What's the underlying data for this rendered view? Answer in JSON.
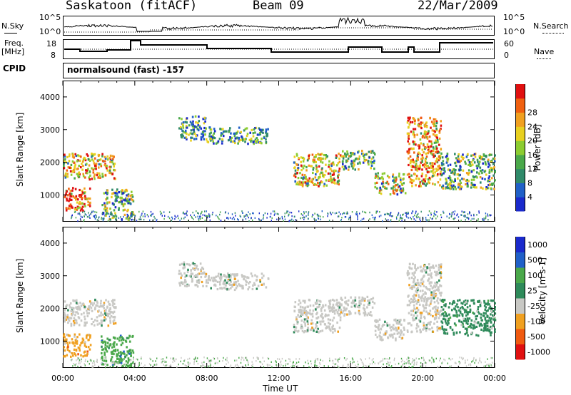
{
  "header": {
    "station": "Saskatoon (fitACF)",
    "beam": "Beam 09",
    "date": "22/Mar/2009"
  },
  "strips": {
    "nsky_label": "N.Sky",
    "nsky_top": "10^5",
    "nsky_bottom": "10^0",
    "nsearch_label": "N.Search",
    "nsearch_top": "10^5",
    "nsearch_bottom": "10^0",
    "freq_label": "Freq.",
    "freq_unit": "[MHz]",
    "freq_top": "18",
    "freq_bottom": "8",
    "nave_label": "Nave",
    "nave_top": "60",
    "nave_bottom": "0",
    "cpid_label": "CPID",
    "cpid_text": "normalsound (fast) -157"
  },
  "colors": {
    "power": [
      "#1a2acc",
      "#2060c8",
      "#2f8a6a",
      "#4aa84a",
      "#8ccc30",
      "#e8d020",
      "#f0a020",
      "#f06010",
      "#e01010"
    ],
    "velocity": [
      "#e01010",
      "#f05a10",
      "#f0a020",
      "#c8c8c4",
      "#2e8a5a",
      "#4aa84a",
      "#2060c8",
      "#1a2acc"
    ],
    "grey": "#c9c8c2"
  },
  "chart_data": [
    {
      "type": "heatmap",
      "panel": "power",
      "ylabel": "Slant Range [km]",
      "xlabel": "",
      "ylim": [
        180,
        4500
      ],
      "xlim": [
        0,
        24
      ],
      "yticks": [
        "1000",
        "2000",
        "3000",
        "4000"
      ],
      "xticks": [
        "00:00",
        "04:00",
        "08:00",
        "12:00",
        "16:00",
        "20:00",
        "00:00"
      ],
      "colorbar_label": "Power [dB]",
      "colorbar_ticks": [
        "4",
        "8",
        "12",
        "16",
        "20",
        "24",
        "28"
      ],
      "echo_regions": [
        {
          "t0": 0.0,
          "t1": 1.5,
          "r0": 550,
          "r1": 1250,
          "level": 8
        },
        {
          "t0": 0.0,
          "t1": 2.9,
          "r0": 1500,
          "r1": 2300,
          "level": 6
        },
        {
          "t0": 2.1,
          "t1": 3.9,
          "r0": 250,
          "r1": 1200,
          "level": 4
        },
        {
          "t0": 6.4,
          "t1": 7.9,
          "r0": 2700,
          "r1": 3450,
          "level": 3
        },
        {
          "t0": 7.9,
          "t1": 11.4,
          "r0": 2600,
          "r1": 3100,
          "level": 3
        },
        {
          "t0": 12.8,
          "t1": 15.4,
          "r0": 1300,
          "r1": 2300,
          "level": 6
        },
        {
          "t0": 15.4,
          "t1": 17.3,
          "r0": 1800,
          "r1": 2400,
          "level": 4
        },
        {
          "t0": 17.3,
          "t1": 19.0,
          "r0": 1050,
          "r1": 1700,
          "level": 5
        },
        {
          "t0": 19.1,
          "t1": 21.0,
          "r0": 1300,
          "r1": 3400,
          "level": 7
        },
        {
          "t0": 21.0,
          "t1": 24.0,
          "r0": 1200,
          "r1": 2300,
          "level": 4
        }
      ]
    },
    {
      "type": "heatmap",
      "panel": "velocity",
      "ylabel": "Slant Range [km]",
      "xlabel": "Time UT",
      "ylim": [
        180,
        4500
      ],
      "xlim": [
        0,
        24
      ],
      "yticks": [
        "1000",
        "2000",
        "3000",
        "4000"
      ],
      "xticks": [
        "00:00",
        "04:00",
        "08:00",
        "12:00",
        "16:00",
        "20:00",
        "00:00"
      ],
      "colorbar_label": "Velocity [m s-1]",
      "colorbar_ticks": [
        "1000",
        "500",
        "100",
        "25",
        "-25",
        "-100",
        "-500",
        "-1000"
      ],
      "echo_regions": [
        {
          "t0": 0.0,
          "t1": 1.5,
          "r0": 550,
          "r1": 1250,
          "level": 2
        },
        {
          "t0": 0.0,
          "t1": 2.9,
          "r0": 1500,
          "r1": 2300,
          "level": 3
        },
        {
          "t0": 2.1,
          "t1": 3.9,
          "r0": 250,
          "r1": 1200,
          "level": 5
        },
        {
          "t0": 6.4,
          "t1": 7.9,
          "r0": 2700,
          "r1": 3450,
          "level": 3
        },
        {
          "t0": 7.9,
          "t1": 11.4,
          "r0": 2600,
          "r1": 3100,
          "level": 3
        },
        {
          "t0": 12.8,
          "t1": 15.4,
          "r0": 1300,
          "r1": 2300,
          "level": 3
        },
        {
          "t0": 15.4,
          "t1": 17.3,
          "r0": 1800,
          "r1": 2400,
          "level": 3
        },
        {
          "t0": 17.3,
          "t1": 19.0,
          "r0": 1050,
          "r1": 1700,
          "level": 3
        },
        {
          "t0": 19.1,
          "t1": 21.0,
          "r0": 1300,
          "r1": 3400,
          "level": 3
        },
        {
          "t0": 21.0,
          "t1": 24.0,
          "r0": 1200,
          "r1": 2300,
          "level": 4
        }
      ]
    }
  ]
}
